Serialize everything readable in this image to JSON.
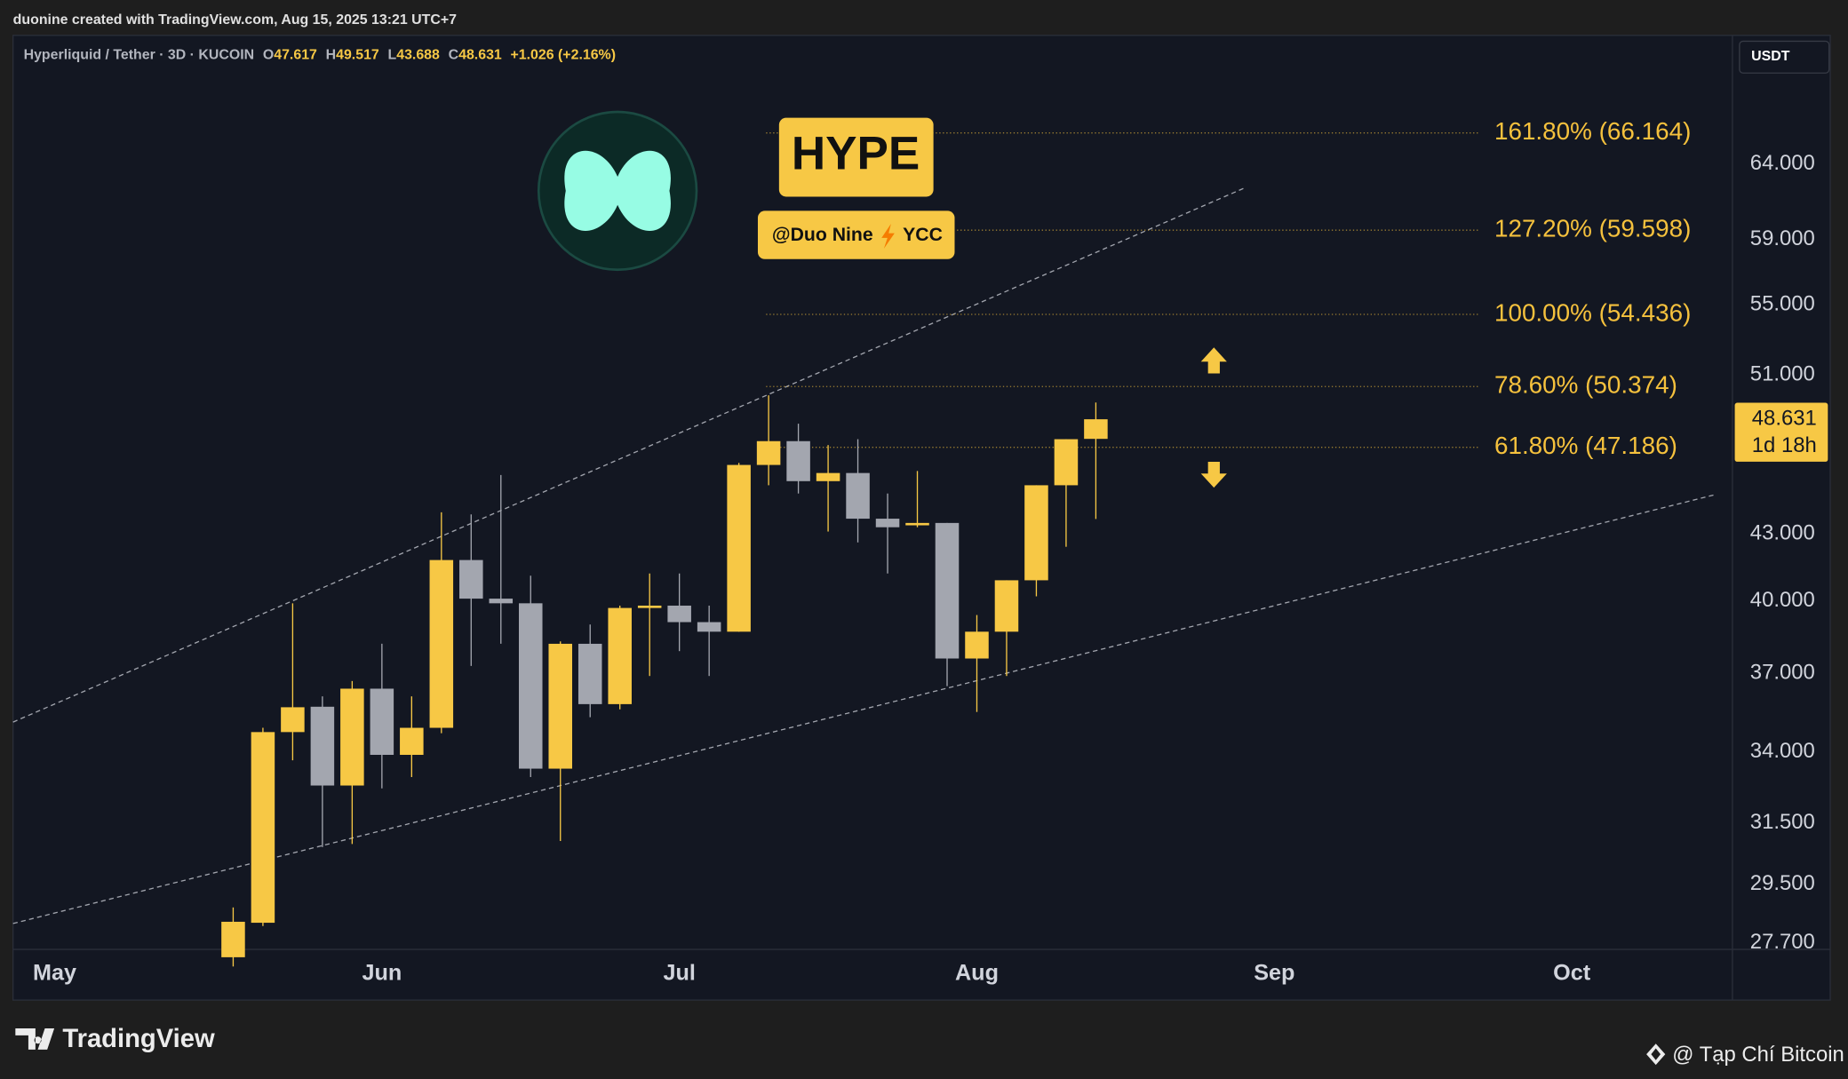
{
  "header": {
    "created": "duonine created with TradingView.com, Aug 15, 2025 13:21 UTC+7",
    "symbol": "Hyperliquid / Tether · 3D · KUCOIN",
    "ohlc_letters": [
      "O",
      "H",
      "L",
      "C"
    ],
    "change": "+1.026 (+2.16%)",
    "currency": "USDT"
  },
  "badges": {
    "ticker": "HYPE",
    "author": "@Duo Nine",
    "group": "YCC"
  },
  "footer": {
    "brand": "TradingView",
    "credit": "@ Tạp Chí Bitcoin"
  },
  "chart_data": {
    "type": "candlestick",
    "candles": {
      "open": [
        27.27,
        28.3,
        34.74,
        35.7,
        32.8,
        36.4,
        33.9,
        34.9,
        41.8,
        40.1,
        39.9,
        33.4,
        38.2,
        35.8,
        39.7,
        39.8,
        39.1,
        38.7,
        46.3,
        47.5,
        45.5,
        45.9,
        43.7,
        43.4,
        43.5,
        37.6,
        38.7,
        40.9,
        45.3,
        47.617
      ],
      "high": [
        28.77,
        34.9,
        39.9,
        36.1,
        36.7,
        38.2,
        36.1,
        44.0,
        43.9,
        45.8,
        41.1,
        38.3,
        39.0,
        39.8,
        41.2,
        41.2,
        39.8,
        46.4,
        49.9,
        48.4,
        47.3,
        47.6,
        44.9,
        46.0,
        43.5,
        39.4,
        40.9,
        45.3,
        47.6,
        49.517
      ],
      "low": [
        27.0,
        28.2,
        33.7,
        30.7,
        30.8,
        32.7,
        33.1,
        34.7,
        37.3,
        38.2,
        33.1,
        30.9,
        35.3,
        35.6,
        36.9,
        37.9,
        36.9,
        38.7,
        45.3,
        44.9,
        43.1,
        42.6,
        41.2,
        43.3,
        36.5,
        35.5,
        36.9,
        40.2,
        42.4,
        43.688
      ],
      "close": [
        28.33,
        34.74,
        35.68,
        32.8,
        36.4,
        33.9,
        34.9,
        41.8,
        40.1,
        39.9,
        33.4,
        38.2,
        35.8,
        39.7,
        39.8,
        39.1,
        38.7,
        46.3,
        47.5,
        45.5,
        45.9,
        43.7,
        43.3,
        43.5,
        37.6,
        38.7,
        40.9,
        45.3,
        47.6,
        48.631
      ]
    },
    "up_color": "#f7c845",
    "down_color": "#a3a6af",
    "log_scale": true,
    "ylim": [
      27.5,
      73.3
    ],
    "yticks": [
      {
        "value": 27.7,
        "label": "27.700"
      },
      {
        "value": 29.5,
        "label": "29.500"
      },
      {
        "value": 31.5,
        "label": "31.500"
      },
      {
        "value": 34,
        "label": "34.000"
      },
      {
        "value": 37,
        "label": "37.000"
      },
      {
        "value": 40,
        "label": "40.000"
      },
      {
        "value": 43,
        "label": "43.000"
      },
      {
        "value": 51,
        "label": "51.000"
      },
      {
        "value": 55,
        "label": "55.000"
      },
      {
        "value": 59,
        "label": "59.000"
      },
      {
        "value": 64,
        "label": "64.000"
      }
    ],
    "xlim": [
      -7.4,
      50.4
    ],
    "xticks": [
      {
        "value": -6,
        "label": "May"
      },
      {
        "value": 5,
        "label": "Jun"
      },
      {
        "value": 15,
        "label": "Jul"
      },
      {
        "value": 25,
        "label": "Aug"
      },
      {
        "value": 35,
        "label": "Sep"
      },
      {
        "value": 45,
        "label": "Oct"
      }
    ],
    "fib_color": "#f5c13d",
    "fib_levels": [
      {
        "value": 66.164,
        "label": "161.80% (66.164)"
      },
      {
        "value": 59.598,
        "label": "127.20% (59.598)"
      },
      {
        "value": 54.436,
        "label": "100.00% (54.436)"
      },
      {
        "value": 50.374,
        "label": "78.60% (50.374)"
      },
      {
        "value": 47.186,
        "label": "61.80% (47.186)"
      }
    ],
    "countdown": "1d 18h"
  }
}
